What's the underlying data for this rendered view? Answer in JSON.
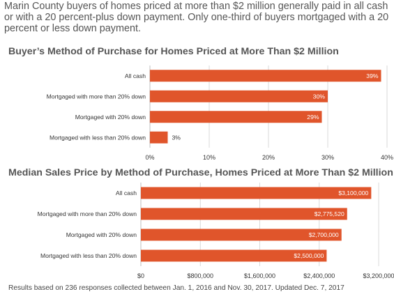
{
  "intro": "Marin County buyers of homes priced at more than $2 million generally paid in all cash or with a 20 percent-plus down payment. Only one-third of buyers mortgaged with a 20 percent or less down payment.",
  "footnote": "Results based on 236 responses collected between Jan. 1, 2016 and Nov. 30, 2017. Updated Dec. 7, 2017",
  "colors": {
    "bar": "#E0552B",
    "gridline": "#D9D9D9",
    "axis": "#BFBFBF",
    "label_inside": "#FFFFFF",
    "label_outside": "#333333"
  },
  "chart_data": [
    {
      "type": "bar",
      "orientation": "horizontal",
      "title": "Buyer’s Method of Purchase for Homes Priced at More Than $2 Million",
      "categories": [
        "All cash",
        "Mortgaged with more than 20% down",
        "Mortgaged with 20% down",
        "Mortgaged with less than 20% down"
      ],
      "values": [
        39,
        30,
        29,
        3
      ],
      "data_labels": [
        "39%",
        "30%",
        "29%",
        "3%"
      ],
      "xlim": [
        0,
        40
      ],
      "ticks": [
        0,
        10,
        20,
        30,
        40
      ],
      "tick_labels": [
        "0%",
        "10%",
        "20%",
        "30%",
        "40%"
      ],
      "grid": true
    },
    {
      "type": "bar",
      "orientation": "horizontal",
      "title": "Median Sales Price by Method of Purchase, Homes Priced at More Than $2 Million",
      "categories": [
        "All cash",
        "Mortgaged with more than 20% down",
        "Mortgaged with 20% down",
        "Mortgaged with less than 20% down"
      ],
      "values": [
        3100000,
        2775520,
        2700000,
        2500000
      ],
      "data_labels": [
        "$3,100,000",
        "$2,775,520",
        "$2,700,000",
        "$2,500,000"
      ],
      "xlim": [
        0,
        3200000
      ],
      "ticks": [
        0,
        800000,
        1600000,
        2400000,
        3200000
      ],
      "tick_labels": [
        "$0",
        "$800,000",
        "$1,600,000",
        "$2,400,000",
        "$3,200,000"
      ],
      "grid": true
    }
  ]
}
